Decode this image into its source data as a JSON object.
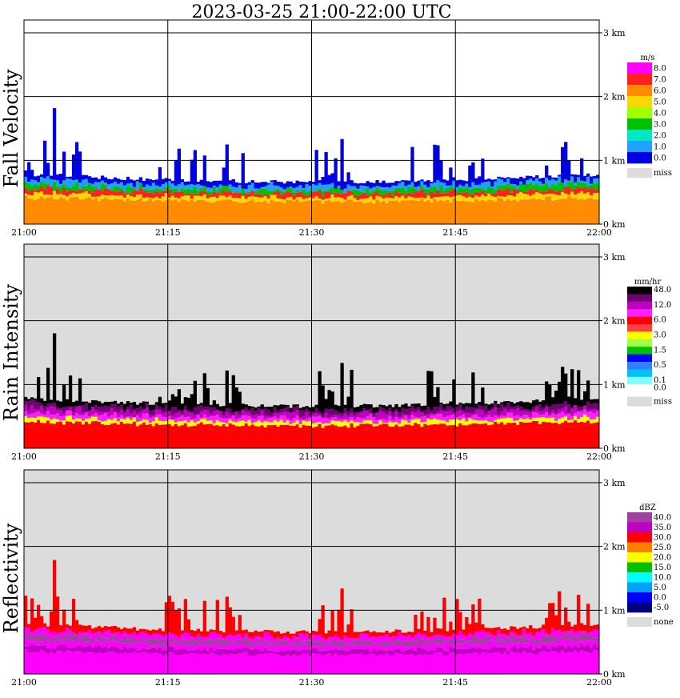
{
  "title": "2023-03-25   21:00-22:00 UTC",
  "colors": {
    "missing": "#dcdcdc",
    "grid": "#000000",
    "background": "#ffffff"
  },
  "chart_data": [
    {
      "type": "heatmap",
      "title": "Fall Velocity",
      "xlabel": "",
      "ylabel": "Fall Velocity",
      "x_ticks": [
        "21:00",
        "21:15",
        "21:30",
        "21:45",
        "22:00"
      ],
      "y_ticks": [
        "0 km",
        "1 km",
        "2 km",
        "3 km"
      ],
      "xlim": [
        "21:00",
        "22:00"
      ],
      "ylim_km": [
        0,
        3.2
      ],
      "grid": true,
      "legend_unit": "m/s",
      "legend": [
        {
          "label": "8.0",
          "color": "#ff00ff"
        },
        {
          "label": "7.0",
          "color": "#ff2020"
        },
        {
          "label": "6.0",
          "color": "#ff8c00"
        },
        {
          "label": "5.0",
          "color": "#ffd700"
        },
        {
          "label": "4.0",
          "color": "#a0ff00"
        },
        {
          "label": "3.0",
          "color": "#00c000"
        },
        {
          "label": "2.0",
          "color": "#00e8c8"
        },
        {
          "label": "1.0",
          "color": "#20a0ff"
        },
        {
          "label": "0.0",
          "color": "#0000e0"
        }
      ],
      "missing_label": "miss",
      "echo_top_km": {
        "base": 1.0,
        "max": 2.0
      },
      "layer_colors": [
        "#ff8c00",
        "#ff8c00",
        "#ffd700",
        "#ff2020",
        "#00c000",
        "#20a0ff",
        "#0000e0"
      ]
    },
    {
      "type": "heatmap",
      "title": "Rain Intensity",
      "xlabel": "",
      "ylabel": "Rain Intensity",
      "x_ticks": [
        "21:00",
        "21:15",
        "21:30",
        "21:45",
        "22:00"
      ],
      "y_ticks": [
        "0 km",
        "1 km",
        "2 km",
        "3 km"
      ],
      "xlim": [
        "21:00",
        "22:00"
      ],
      "ylim_km": [
        0,
        3.2
      ],
      "grid": true,
      "legend_unit": "mm/hr",
      "legend": [
        {
          "label": "48.0",
          "color": "#000000"
        },
        {
          "label": "",
          "color": "#700070"
        },
        {
          "label": "12.0",
          "color": "#c000c0"
        },
        {
          "label": "",
          "color": "#ff20ff"
        },
        {
          "label": "6.0",
          "color": "#ff0000"
        },
        {
          "label": "",
          "color": "#ff4040"
        },
        {
          "label": "3.0",
          "color": "#ffff00"
        },
        {
          "label": "",
          "color": "#a0ff40"
        },
        {
          "label": "1.5",
          "color": "#00c000"
        },
        {
          "label": "",
          "color": "#0000ff"
        },
        {
          "label": "0.5",
          "color": "#3080ff"
        },
        {
          "label": "",
          "color": "#00c0ff"
        },
        {
          "label": "0.1",
          "color": "#80ffff"
        },
        {
          "label": "0.0",
          "color": "#ffffff"
        }
      ],
      "missing_label": "miss",
      "layer_colors": [
        "#ff0000",
        "#ff0000",
        "#ffff00",
        "#ff20ff",
        "#c000c0",
        "#700070",
        "#000000"
      ]
    },
    {
      "type": "heatmap",
      "title": "Reflectivity",
      "xlabel": "",
      "ylabel": "Reflectivity",
      "x_ticks": [
        "21:00",
        "21:15",
        "21:30",
        "21:45",
        "22:00"
      ],
      "y_ticks": [
        "0 km",
        "1 km",
        "2 km",
        "3 km"
      ],
      "xlim": [
        "21:00",
        "22:00"
      ],
      "ylim_km": [
        0,
        3.2
      ],
      "grid": true,
      "legend_unit": "dBZ",
      "legend": [
        {
          "label": "40.0",
          "color": "#a040a0"
        },
        {
          "label": "35.0",
          "color": "#c000c0"
        },
        {
          "label": "30.0",
          "color": "#ff0000"
        },
        {
          "label": "25.0",
          "color": "#ff8000"
        },
        {
          "label": "20.0",
          "color": "#ffff00"
        },
        {
          "label": "15.0",
          "color": "#00c000"
        },
        {
          "label": "10.0",
          "color": "#00ffff"
        },
        {
          "label": "5.0",
          "color": "#00a0ff"
        },
        {
          "label": "0.0",
          "color": "#0000ff"
        },
        {
          "label": "-5.0",
          "color": "#000080"
        }
      ],
      "missing_label": "none",
      "layer_colors": [
        "#ff00ff",
        "#c000c0",
        "#ff00ff",
        "#a040a0",
        "#ff00ff",
        "#ff0000"
      ]
    }
  ]
}
